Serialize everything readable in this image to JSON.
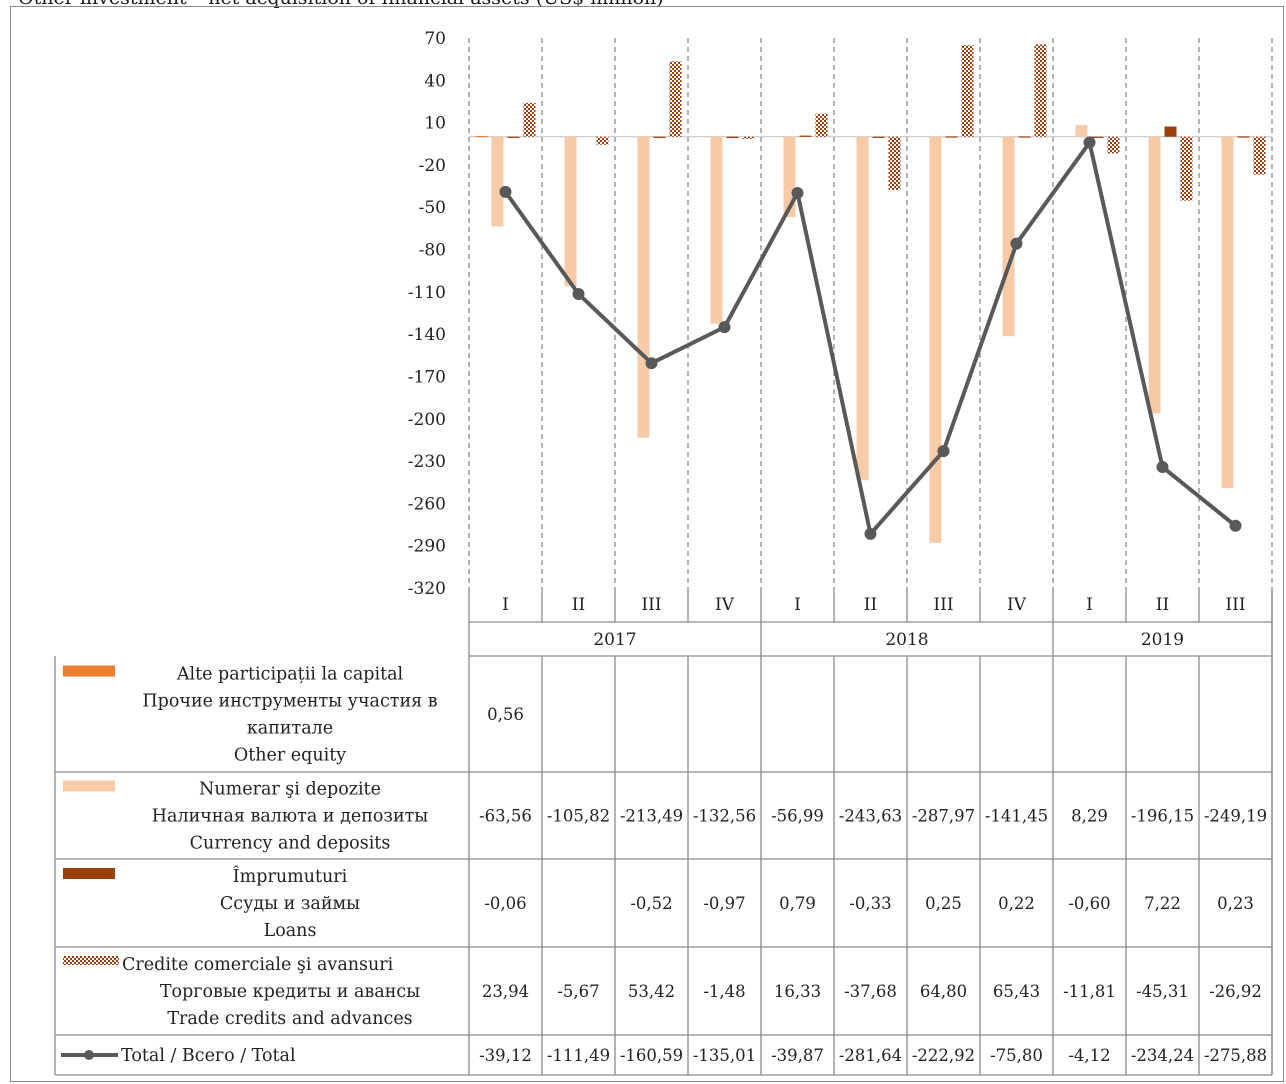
{
  "title": "Other investment – net acquisition of financial assets (US$ million)",
  "colors": {
    "other_equity": "#ed7d31",
    "currency": "#f8cba8",
    "loans": "#9b3f0c",
    "trade": "#9b3f0c",
    "total": "#595959",
    "grid": "#8c8c8c"
  },
  "chart_data": {
    "type": "bar",
    "ylim": [
      -320,
      70
    ],
    "yticks": [
      "70",
      "40",
      "10",
      "-20",
      "-50",
      "-80",
      "-110",
      "-140",
      "-170",
      "-200",
      "-230",
      "-260",
      "-290",
      "-320"
    ],
    "quarters": [
      "I",
      "II",
      "III",
      "IV",
      "I",
      "II",
      "III",
      "IV",
      "I",
      "II",
      "III"
    ],
    "years": [
      {
        "label": "2017",
        "span": 4
      },
      {
        "label": "2018",
        "span": 4
      },
      {
        "label": "2019",
        "span": 3
      }
    ],
    "series": [
      {
        "key": "other_equity",
        "name": "Alte participații la capital\nПрочие инструменты участия в капитале\nOther equity",
        "name_lines": [
          "Alte participații la capital",
          "Прочие инструменты участия в",
          "капитале",
          "Other equity"
        ],
        "type": "bar",
        "values": [
          0.56,
          null,
          null,
          null,
          null,
          null,
          null,
          null,
          null,
          null,
          null
        ],
        "labels": [
          "0,56",
          "",
          "",
          "",
          "",
          "",
          "",
          "",
          "",
          "",
          ""
        ]
      },
      {
        "key": "currency",
        "name": "Numerar şi depozite\nНаличная валюта и депозиты\nCurrency and deposits",
        "name_lines": [
          "Numerar şi depozite",
          "Наличная валюта и депозиты",
          "Currency and deposits"
        ],
        "type": "bar",
        "values": [
          -63.56,
          -105.82,
          -213.49,
          -132.56,
          -56.99,
          -243.63,
          -287.97,
          -141.45,
          8.29,
          -196.15,
          -249.19
        ],
        "labels": [
          "-63,56",
          "-105,82",
          "-213,49",
          "-132,56",
          "-56,99",
          "-243,63",
          "-287,97",
          "-141,45",
          "8,29",
          "-196,15",
          "-249,19"
        ]
      },
      {
        "key": "loans",
        "name": "Împrumuturi\nСсуды и займы\nLoans",
        "name_lines": [
          "Împrumuturi",
          "Ссуды и займы",
          "Loans"
        ],
        "type": "bar",
        "values": [
          -0.06,
          null,
          -0.52,
          -0.97,
          0.79,
          -0.33,
          0.25,
          0.22,
          -0.6,
          7.22,
          0.23
        ],
        "labels": [
          "-0,06",
          "",
          "-0,52",
          "-0,97",
          "0,79",
          "-0,33",
          "0,25",
          "0,22",
          "-0,60",
          "7,22",
          "0,23"
        ]
      },
      {
        "key": "trade",
        "name": "Credite comerciale şi avansuri\nТорговые кредиты и авансы\nTrade credits and advances",
        "name_lines": [
          "Credite comerciale şi avansuri",
          "Торговые кредиты и авансы",
          "Trade credits and advances"
        ],
        "type": "bar",
        "values": [
          23.94,
          -5.67,
          53.42,
          -1.48,
          16.33,
          -37.68,
          64.8,
          65.43,
          -11.81,
          -45.31,
          -26.92
        ],
        "labels": [
          "23,94",
          "-5,67",
          "53,42",
          "-1,48",
          "16,33",
          "-37,68",
          "64,80",
          "65,43",
          "-11,81",
          "-45,31",
          "-26,92"
        ]
      },
      {
        "key": "total",
        "name": "Total / Всего / Total",
        "name_lines": [
          "Total / Всего / Total"
        ],
        "type": "line",
        "values": [
          -39.12,
          -111.49,
          -160.59,
          -135.01,
          -39.87,
          -281.64,
          -222.92,
          -75.8,
          -4.12,
          -234.24,
          -275.88
        ],
        "labels": [
          "-39,12",
          "-111,49",
          "-160,59",
          "-135,01",
          "-39,87",
          "-281,64",
          "-222,92",
          "-75,80",
          "-4,12",
          "-234,24",
          "-275,88"
        ]
      }
    ]
  }
}
